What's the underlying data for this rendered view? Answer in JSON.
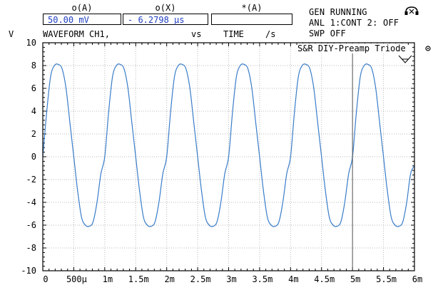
{
  "header": {
    "readouts": [
      {
        "label": "o(A)",
        "value": "50.00 mV"
      },
      {
        "label": "o(X)",
        "value": "- 6.2798 µs"
      },
      {
        "label": "*(A)",
        "value": ""
      }
    ],
    "status": {
      "line1": "GEN RUNNING",
      "line2": "ANL 1:CONT 2: OFF",
      "line3": "SWP OFF"
    },
    "row2": {
      "yunit": "V",
      "channel": "WAVEFORM CH1,",
      "vs": "vs",
      "xaxis": "TIME",
      "xunit": "/s"
    }
  },
  "plot": {
    "watermark": "S&R DIY-Preamp Triode"
  },
  "chart_data": {
    "type": "line",
    "xlabel": "TIME",
    "ylabel": "V",
    "xlim": [
      0,
      0.006
    ],
    "ylim": [
      -10,
      10
    ],
    "xticks": [
      "0",
      "500µ",
      "1m",
      "1.5m",
      "2m",
      "2.5m",
      "3m",
      "3.5m",
      "4m",
      "4.5m",
      "5m",
      "5.5m",
      "6m"
    ],
    "yticks": [
      "10",
      "8",
      "6",
      "4",
      "2",
      "0",
      "-2",
      "-4",
      "-6",
      "-8",
      "-10"
    ],
    "grid": true,
    "series": [
      {
        "color": "#3a7dc9",
        "x": [
          0,
          6.25e-05,
          0.000125,
          0.0001875,
          0.00025,
          0.0003125,
          0.000375,
          0.0004375,
          0.0005,
          0.0005625,
          0.000625,
          0.0006875,
          0.00075,
          0.0008125,
          0.000875,
          0.0009375,
          0.001,
          0.0010625,
          0.001125,
          0.0011875,
          0.00125,
          0.0013125,
          0.001375,
          0.0014375,
          0.0015,
          0.0015625,
          0.001625,
          0.0016875,
          0.00175,
          0.0018125,
          0.001875,
          0.0019375,
          0.002,
          0.0020625,
          0.002125,
          0.0021875,
          0.00225,
          0.0023125,
          0.002375,
          0.0024375,
          0.0025,
          0.0025625,
          0.002625,
          0.0026875,
          0.00275,
          0.0028125,
          0.002875,
          0.0029375,
          0.003,
          0.0030625,
          0.003125,
          0.0031875,
          0.00325,
          0.0033125,
          0.003375,
          0.0034375,
          0.0035,
          0.0035625,
          0.003625,
          0.0036875,
          0.00375,
          0.0038125,
          0.003875,
          0.0039375,
          0.004,
          0.0040625,
          0.004125,
          0.0041875,
          0.00425,
          0.0043125,
          0.004375,
          0.0044375,
          0.0045,
          0.0045625,
          0.004625,
          0.0046875,
          0.00475,
          0.0048125,
          0.004875,
          0.0049375,
          0.005,
          0.0050625,
          0.005125,
          0.0051875,
          0.00525,
          0.0053125,
          0.005375,
          0.0054375,
          0.0055,
          0.0055625,
          0.005625,
          0.0056875,
          0.00575,
          0.0058125,
          0.005875,
          0.0059375,
          0.006
        ],
        "y": [
          0,
          3.9,
          7.0,
          8.0,
          8.1,
          7.7,
          6.0,
          3.0,
          0.0,
          -3.0,
          -5.3,
          -6.0,
          -6.1,
          -5.7,
          -4.0,
          -1.5,
          0,
          3.9,
          7.0,
          8.0,
          8.1,
          7.7,
          6.0,
          3.0,
          0.0,
          -3.0,
          -5.3,
          -6.0,
          -6.1,
          -5.7,
          -4.0,
          -1.5,
          0,
          3.9,
          7.0,
          8.0,
          8.1,
          7.7,
          6.0,
          3.0,
          0.0,
          -3.0,
          -5.3,
          -6.0,
          -6.1,
          -5.7,
          -4.0,
          -1.5,
          0,
          3.9,
          7.0,
          8.0,
          8.1,
          7.7,
          6.0,
          3.0,
          0.0,
          -3.0,
          -5.3,
          -6.0,
          -6.1,
          -5.7,
          -4.0,
          -1.5,
          0,
          3.9,
          7.0,
          8.0,
          8.1,
          7.7,
          6.0,
          3.0,
          0.0,
          -3.0,
          -5.3,
          -6.0,
          -6.1,
          -5.7,
          -4.0,
          -1.5,
          0,
          3.9,
          7.0,
          8.0,
          8.1,
          7.7,
          6.0,
          3.0,
          0.0,
          -3.0,
          -5.3,
          -6.0,
          -6.1,
          -5.7,
          -4.0,
          -1.5,
          -0.8
        ]
      }
    ]
  }
}
